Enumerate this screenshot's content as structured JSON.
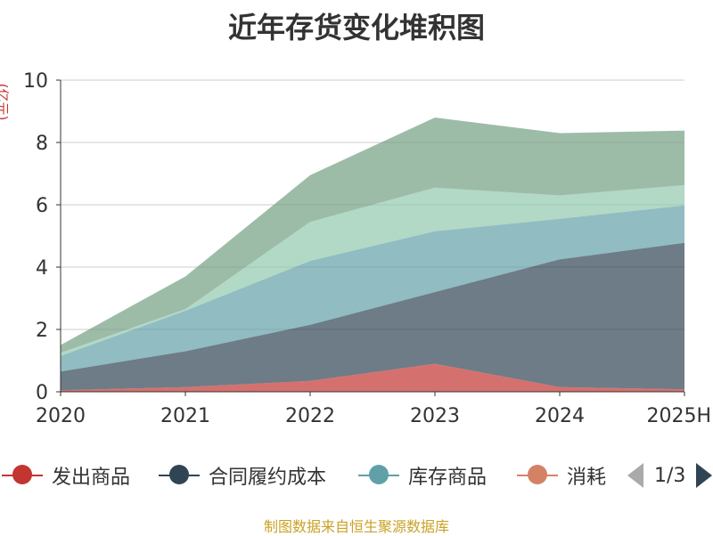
{
  "title": "近年存货变化堆积图",
  "source": "制图数据来自恒生聚源数据库",
  "legend": {
    "items": [
      {
        "label": "发出商品",
        "color": "#c23531"
      },
      {
        "label": "合同履约成本",
        "color": "#2f4554"
      },
      {
        "label": "库存商品",
        "color": "#61a0a8"
      },
      {
        "label": "消耗",
        "color": "#d48265"
      }
    ],
    "page": "1/3"
  },
  "chart_data": {
    "type": "area",
    "stacked": true,
    "title": "近年存货变化堆积图",
    "ylabel": "(亿元)",
    "xlabel": "",
    "x": [
      "2020",
      "2021",
      "2022",
      "2023",
      "2024",
      "2025H"
    ],
    "ylim": [
      0,
      10
    ],
    "yticks": [
      0,
      2,
      4,
      6,
      8,
      10
    ],
    "grid": true,
    "series": [
      {
        "name": "发出商品",
        "color": "#c23531",
        "values": [
          0.05,
          0.15,
          0.35,
          0.9,
          0.15,
          0.08
        ]
      },
      {
        "name": "合同履约成本",
        "color": "#2f4554",
        "values": [
          0.6,
          1.15,
          1.8,
          2.3,
          4.1,
          4.7
        ]
      },
      {
        "name": "库存商品",
        "color": "#61a0a8",
        "values": [
          0.5,
          1.3,
          2.05,
          1.95,
          1.3,
          1.2
        ]
      },
      {
        "values": [
          0.1,
          0.05,
          1.25,
          1.4,
          0.75,
          0.65
        ],
        "color": "#91c7ae"
      },
      {
        "values": [
          0.25,
          1.05,
          1.5,
          2.25,
          2.0,
          1.75
        ],
        "color": "#749f83"
      }
    ]
  }
}
